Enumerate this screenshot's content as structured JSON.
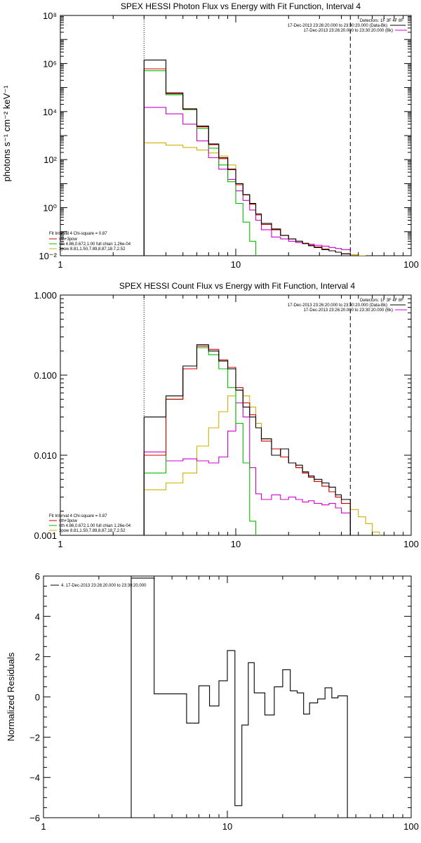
{
  "chart_data": [
    {
      "type": "line",
      "title": "SPEX HESSI Photon Flux vs Energy with Fit Function, Interval 4",
      "ylabel": "photons s⁻¹ cm⁻² keV⁻¹",
      "xscale": "log",
      "yscale": "log",
      "xlim": [
        1,
        100
      ],
      "ylim": [
        0.01,
        100000000
      ],
      "x_ticks": [
        {
          "v": 1,
          "label": "1"
        },
        {
          "v": 10,
          "label": "10"
        },
        {
          "v": 100,
          "label": "100"
        }
      ],
      "y_ticks": [
        {
          "v": 0.01,
          "label": "10⁻²"
        },
        {
          "v": 1,
          "label": "10⁰"
        },
        {
          "v": 100,
          "label": "10²"
        },
        {
          "v": 10000,
          "label": "10⁴"
        },
        {
          "v": 1000000,
          "label": "10⁶"
        },
        {
          "v": 100000000,
          "label": "10⁸"
        }
      ],
      "vlines": [
        {
          "x": 3,
          "style": "dotted"
        },
        {
          "x": 45,
          "style": "dashed"
        }
      ],
      "legend_top": {
        "placement": "top-right",
        "lines": [
          {
            "text": "Detectors: 1F 3F 4F 8F"
          },
          {
            "text": "17-Dec-2013 23:26:20.000 to 23:30:20.000 (Data-Bk)",
            "color": "#000000"
          },
          {
            "text": "17-Dec-2013 23:26:20.000 to 23:30:20.000 (Bk)",
            "color": "#d000d0"
          }
        ]
      },
      "legend_bottom": {
        "placement": "bottom-left",
        "lines": [
          {
            "text": "Fit Interval  4    Chi-square = 0.87"
          },
          {
            "text": "vth+3pow",
            "color": "#d00000"
          },
          {
            "text": "vth 4.86,0.672,1.00   full chian 1.26e-04",
            "color": "#00c000"
          },
          {
            "text": "3pow  8.81,1.50,7.89,8.87,18.7,2.52",
            "color": "#d0b000"
          }
        ]
      },
      "edges": [
        3,
        4,
        5,
        6,
        7,
        8,
        9,
        10,
        11,
        12,
        13,
        14,
        16,
        18,
        20,
        22,
        24,
        26,
        28,
        31,
        34,
        37,
        40,
        45
      ],
      "series": [
        {
          "name": "Data-Bk",
          "color": "#000000",
          "values": [
            1400000,
            60000,
            13000,
            2500,
            450,
            120,
            40,
            10,
            3.5,
            1.5,
            0.55,
            0.22,
            0.13,
            0.07,
            0.05,
            0.04,
            0.032,
            0.026,
            0.022,
            0.018,
            0.016,
            0.014,
            0.012
          ]
        },
        {
          "name": "Bk",
          "color": "#d000d0",
          "values": [
            15000,
            8000,
            3000,
            600,
            120,
            40,
            15,
            5,
            2,
            0.8,
            0.3,
            0.12,
            0.06,
            0.05,
            0.04,
            0.035,
            0.032,
            0.03,
            0.027,
            0.025,
            0.022,
            0.02,
            0.018
          ]
        },
        {
          "name": "vth+3pow",
          "color": "#d00000",
          "values": [
            600000,
            55000,
            12500,
            2300,
            420,
            110,
            38,
            9,
            3.4,
            1.4,
            0.5,
            0.2,
            0.12,
            0.07,
            0.05,
            0.04,
            0.033,
            0.027,
            0.023,
            0.019,
            0.016,
            0.014,
            0.012
          ]
        },
        {
          "name": "vth 4.86,0.672,1.00   full chian 1.26e-04",
          "color": "#00c000",
          "values": [
            500000,
            50000,
            12000,
            2000,
            300,
            60,
            12,
            1.5,
            0.25,
            0.04
          ]
        },
        {
          "name": "3pow  8.81,1.50,7.89,8.87,18.7,2.52",
          "color": "#d0b000",
          "values": [
            500,
            400,
            320,
            250,
            190,
            140,
            60,
            10,
            3.4,
            1.4,
            0.5,
            0.2,
            0.12,
            0.07,
            0.05,
            0.04,
            0.033,
            0.027,
            0.023,
            0.019,
            0.016,
            0.014,
            0.012
          ]
        }
      ],
      "yellow_tail": {
        "edges": [
          45,
          50,
          55
        ],
        "values": [
          0.011,
          0.009
        ]
      }
    },
    {
      "type": "line",
      "title": "SPEX HESSI Count Flux vs Energy with Fit Function, Interval 4",
      "xscale": "log",
      "yscale": "log",
      "xlim": [
        1,
        100
      ],
      "ylim": [
        0.001,
        1
      ],
      "x_ticks": [
        {
          "v": 1,
          "label": "1"
        },
        {
          "v": 10,
          "label": "10"
        },
        {
          "v": 100,
          "label": "100"
        }
      ],
      "y_ticks": [
        {
          "v": 0.001,
          "label": "0.001"
        },
        {
          "v": 0.01,
          "label": "0.010"
        },
        {
          "v": 0.1,
          "label": "0.100"
        },
        {
          "v": 1,
          "label": "1.000"
        }
      ],
      "vlines": [
        {
          "x": 3,
          "style": "dotted"
        },
        {
          "x": 45,
          "style": "dashed"
        }
      ],
      "legend_top": {
        "placement": "top-right",
        "lines": [
          {
            "text": "Detectors: 1F 3F 4F 8F"
          },
          {
            "text": "17-Dec-2013 23:26:20.000 to 23:30:20.000 (Data-Bk)",
            "color": "#000000"
          },
          {
            "text": "17-Dec-2013 23:26:20.000 to 23:30:20.000 (Bk)",
            "color": "#d000d0"
          }
        ]
      },
      "legend_bottom": {
        "placement": "bottom-left",
        "lines": [
          {
            "text": "Fit Interval  4    Chi-square = 0.87"
          },
          {
            "text": "vth+3pow",
            "color": "#d00000"
          },
          {
            "text": "vth 4.86,0.672,1.00   full chian 1.26e-04",
            "color": "#00c000"
          },
          {
            "text": "3pow  8.81,1.50,7.89,8.87,18.7,2.52",
            "color": "#d0b000"
          }
        ]
      },
      "edges": [
        3,
        4,
        5,
        6,
        7,
        8,
        9,
        10,
        11,
        12,
        13,
        14,
        16,
        18,
        20,
        22,
        24,
        26,
        28,
        31,
        34,
        37,
        40,
        45
      ],
      "series": [
        {
          "name": "Data-Bk",
          "color": "#000000",
          "values": [
            0.03,
            0.055,
            0.13,
            0.24,
            0.2,
            0.15,
            0.12,
            0.065,
            0.04,
            0.03,
            0.022,
            0.016,
            0.01,
            0.012,
            0.008,
            0.0075,
            0.0062,
            0.0055,
            0.005,
            0.0045,
            0.004,
            0.0032,
            0.0028
          ]
        },
        {
          "name": "Bk",
          "color": "#d000d0",
          "values": [
            0.011,
            0.0085,
            0.009,
            0.0085,
            0.008,
            0.0095,
            0.02,
            0.045,
            0.03,
            0.007,
            0.0033,
            0.0028,
            0.0032,
            0.0028,
            0.003,
            0.0028,
            0.0026,
            0.0027,
            0.0025,
            0.0024,
            0.0025,
            0.0022,
            0.0019
          ]
        },
        {
          "name": "vth+3pow",
          "color": "#d00000",
          "values": [
            0.01,
            0.05,
            0.12,
            0.23,
            0.21,
            0.155,
            0.125,
            0.07,
            0.045,
            0.032,
            0.022,
            0.015,
            0.012,
            0.0095,
            0.008,
            0.007,
            0.006,
            0.0053,
            0.0047,
            0.0041,
            0.0035,
            0.003,
            0.0025
          ]
        },
        {
          "name": "vth 4.86,0.672,1.00   full chian 1.26e-04",
          "color": "#00c000",
          "values": [
            0.006,
            0.05,
            0.12,
            0.22,
            0.18,
            0.12,
            0.07,
            0.025,
            0.008,
            0.0015
          ]
        },
        {
          "name": "3pow  8.81,1.50,7.89,8.87,18.7,2.52",
          "color": "#d0b000",
          "values": [
            0.0037,
            0.0045,
            0.006,
            0.013,
            0.022,
            0.035,
            0.055,
            0.065,
            0.055,
            0.04,
            0.025,
            0.016,
            0.012,
            0.0095,
            0.008,
            0.007,
            0.006,
            0.0053,
            0.0047,
            0.0041,
            0.0035,
            0.003,
            0.0025
          ]
        }
      ],
      "yellow_tail": {
        "edges": [
          45,
          50,
          55,
          60,
          66
        ],
        "values": [
          0.0021,
          0.0017,
          0.0014,
          0.0011
        ]
      }
    },
    {
      "type": "line",
      "ylabel": "Normalized Residuals",
      "xscale": "log",
      "yscale": "linear",
      "xlim": [
        1,
        100
      ],
      "ylim": [
        -6,
        6
      ],
      "x_ticks": [
        {
          "v": 1,
          "label": "1"
        },
        {
          "v": 10,
          "label": "10"
        },
        {
          "v": 100,
          "label": "100"
        }
      ],
      "y_ticks": [
        {
          "v": 6,
          "label": "6"
        },
        {
          "v": 4,
          "label": "4"
        },
        {
          "v": 2,
          "label": "2"
        },
        {
          "v": 0,
          "label": "0"
        },
        {
          "v": -2,
          "label": "−2"
        },
        {
          "v": -4,
          "label": "−4"
        },
        {
          "v": -6,
          "label": "−6"
        }
      ],
      "legend": {
        "placement": "top-left",
        "lines": [
          {
            "text": "4. 17-Dec-2013 23:26:20.000 to 23:30:20.000",
            "color": "#000000"
          }
        ]
      },
      "edges": [
        3,
        4,
        5,
        6,
        7,
        8,
        9,
        10,
        11,
        12,
        13,
        14,
        16,
        18,
        20,
        22,
        24,
        26,
        28,
        31,
        34,
        37,
        40,
        45
      ],
      "series": [
        {
          "name": "4. 17-Dec-2013 23:26:20.000 to 23:30:20.000",
          "color": "#000000",
          "values": [
            5.9,
            0.15,
            0.15,
            -1.3,
            0.55,
            -0.45,
            0.8,
            2.3,
            -5.4,
            -1.4,
            1.7,
            0.2,
            -0.9,
            0.5,
            1.35,
            0.3,
            0.2,
            -0.85,
            -0.3,
            -0.1,
            0.45,
            -0.05,
            0.05
          ]
        }
      ]
    }
  ]
}
